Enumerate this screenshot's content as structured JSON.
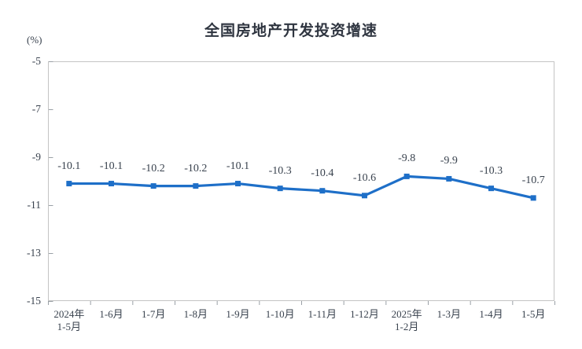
{
  "title": "全国房地产开发投资增速",
  "axis_unit": "(%)",
  "colors": {
    "line": "#1e6fc8",
    "axis_border": "#c4c4c4",
    "tick": "#9aa0a6",
    "text": "#39424e"
  },
  "chart_data": {
    "type": "line",
    "title": "全国房地产开发投资增速",
    "ylabel": "(%)",
    "xlabel": "",
    "ylim": [
      -15,
      -5
    ],
    "yticks": [
      -5,
      -7,
      -9,
      -11,
      -13,
      -15
    ],
    "grid": false,
    "legend": "none",
    "categories": [
      "2024年\n1-5月",
      "1-6月",
      "1-7月",
      "1-8月",
      "1-9月",
      "1-10月",
      "1-11月",
      "1-12月",
      "2025年\n1-2月",
      "1-3月",
      "1-4月",
      "1-5月"
    ],
    "series": [
      {
        "name": "全国房地产开发投资增速",
        "color": "#1e6fc8",
        "marker": "square",
        "values": [
          -10.1,
          -10.1,
          -10.2,
          -10.2,
          -10.1,
          -10.3,
          -10.4,
          -10.6,
          -9.8,
          -9.9,
          -10.3,
          -10.7
        ],
        "data_labels": [
          "-10.1",
          "-10.1",
          "-10.2",
          "-10.2",
          "-10.1",
          "-10.3",
          "-10.4",
          "-10.6",
          "-9.8",
          "-9.9",
          "-10.3",
          "-10.7"
        ]
      }
    ]
  }
}
